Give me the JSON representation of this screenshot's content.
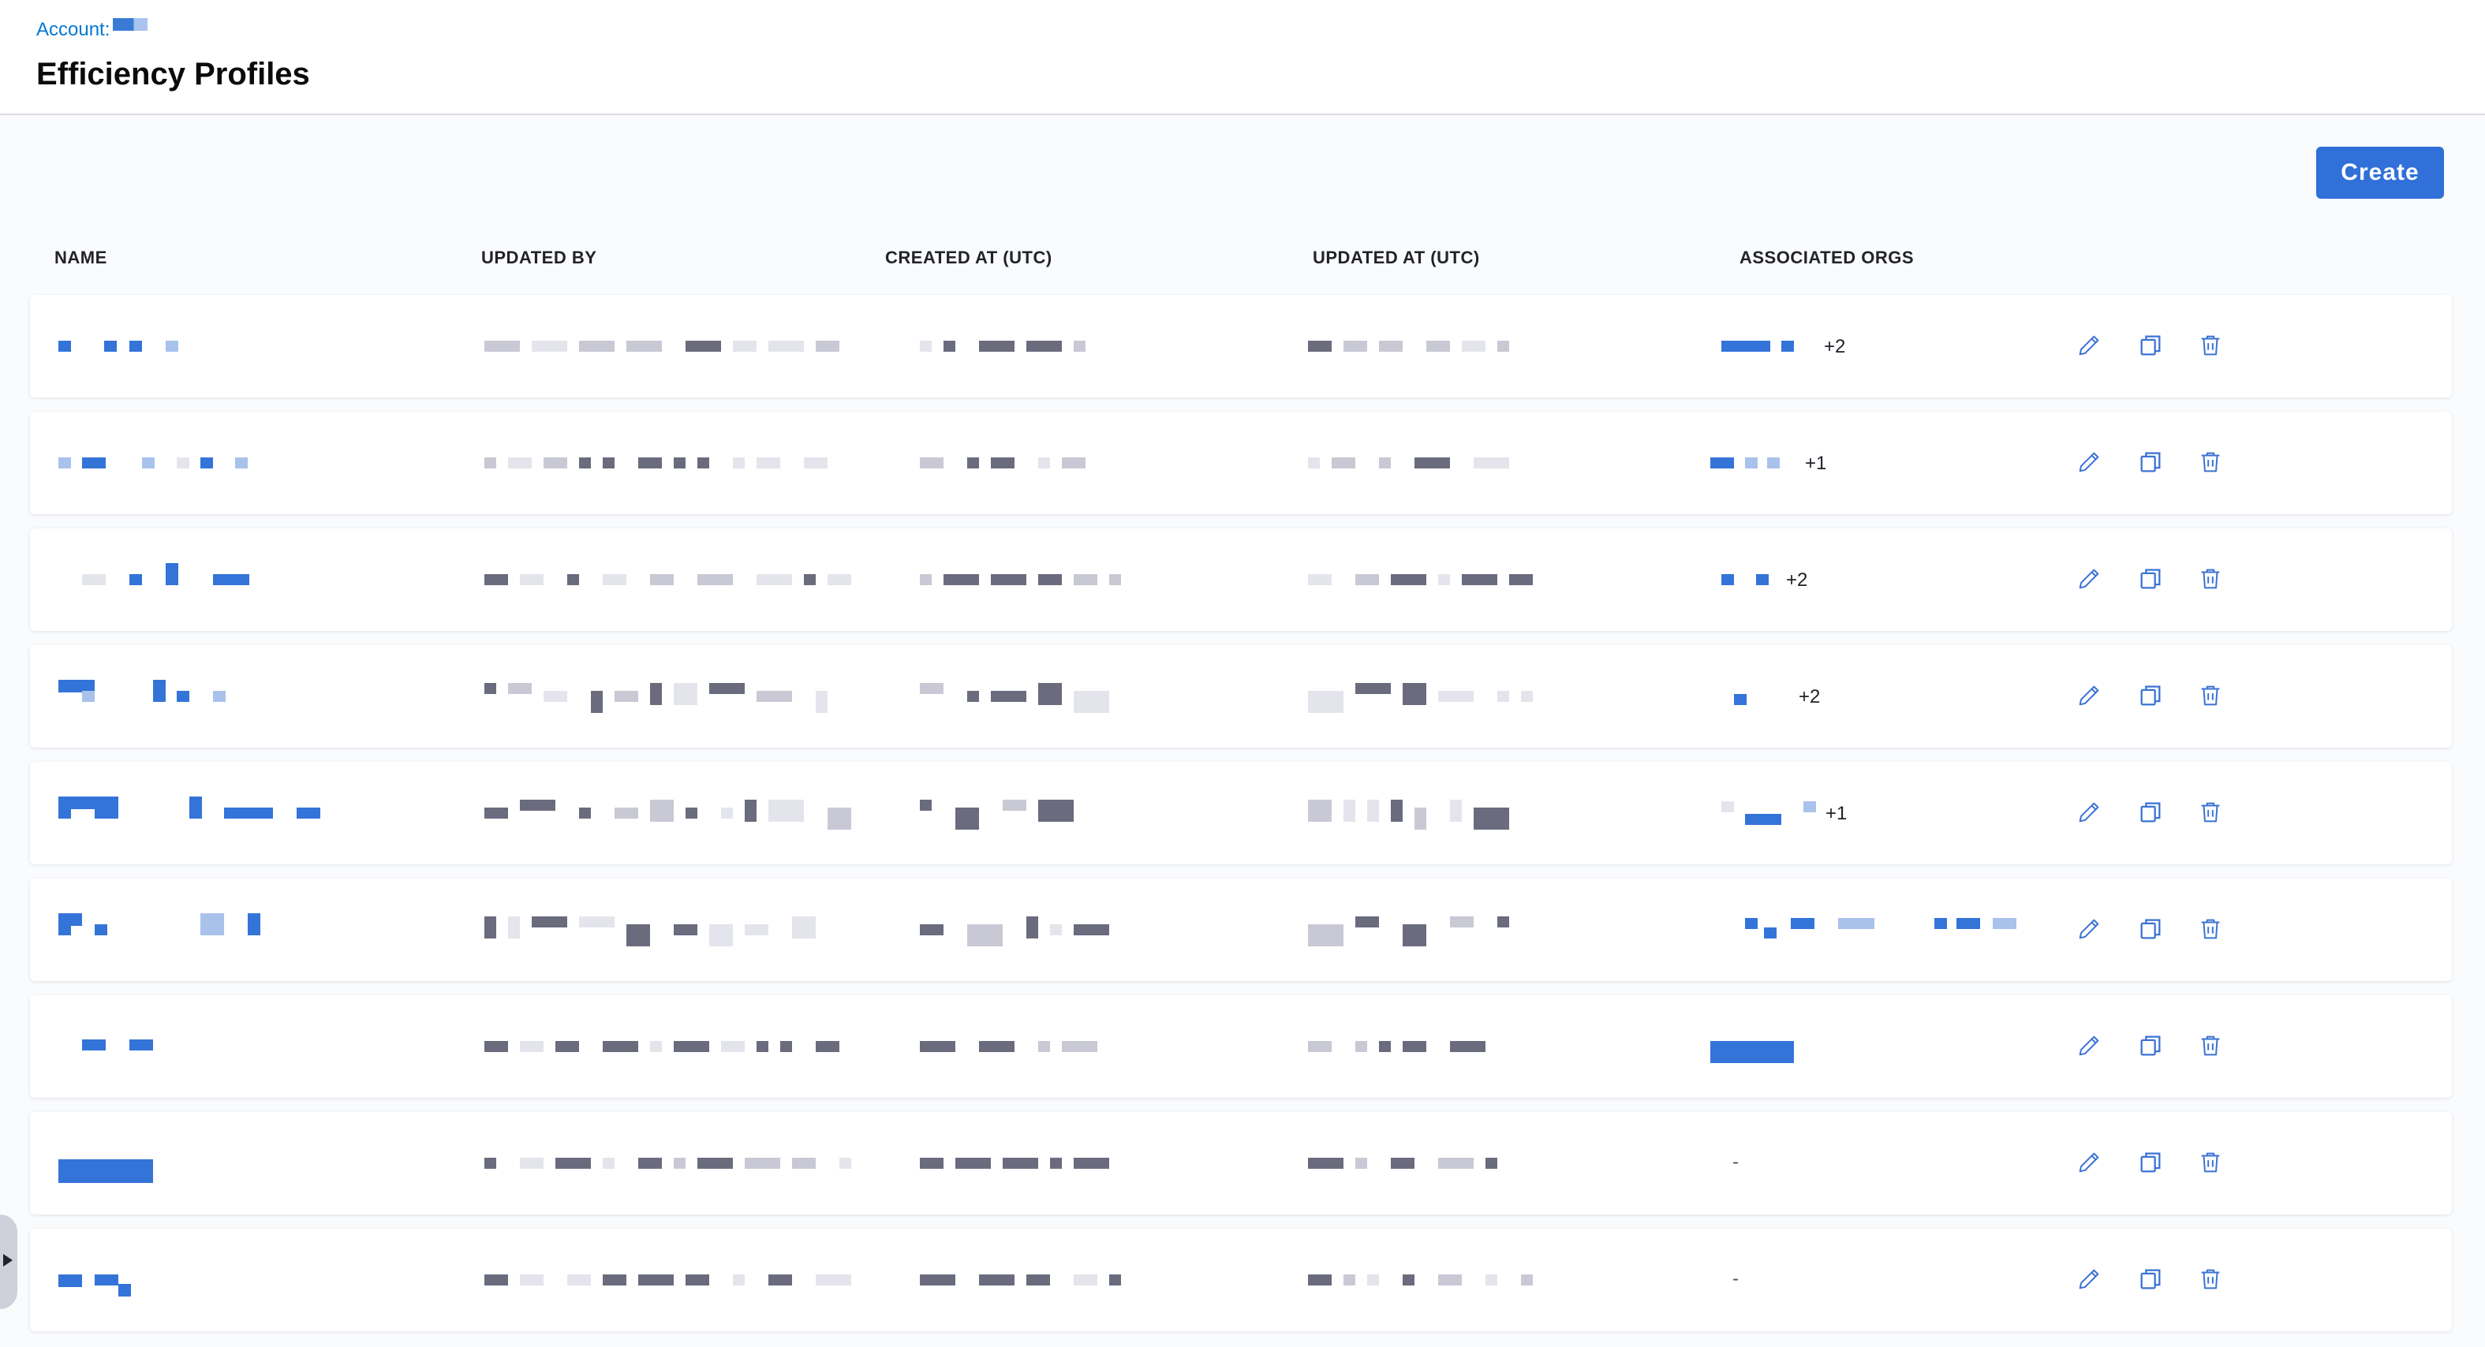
{
  "header": {
    "breadcrumb": "Account:",
    "title": "Efficiency Profiles"
  },
  "toolbar": {
    "create_label": "Create"
  },
  "table": {
    "columns": [
      "NAME",
      "UPDATED BY",
      "CREATED AT (UTC)",
      "UPDATED AT (UTC)",
      "ASSOCIATED ORGS"
    ],
    "rows": [
      {
        "orgs_extra": "+2"
      },
      {
        "orgs_extra": "+1"
      },
      {
        "orgs_extra": "+2"
      },
      {
        "orgs_extra": "+2"
      },
      {
        "orgs_extra": "+1"
      },
      {
        "orgs_extra": ""
      },
      {
        "orgs_extra": ""
      },
      {
        "orgs_extra": "-"
      },
      {
        "orgs_extra": "-"
      }
    ]
  },
  "icons": {
    "edit": "pencil-icon",
    "clone": "copy-icon",
    "delete": "trash-icon"
  },
  "colors": {
    "accent": "#3070d8",
    "link": "#0278d5",
    "redacted_blue": "#3474d8",
    "redacted_grey": "#6a6b7d",
    "icon_blue": "#3a72d4"
  }
}
